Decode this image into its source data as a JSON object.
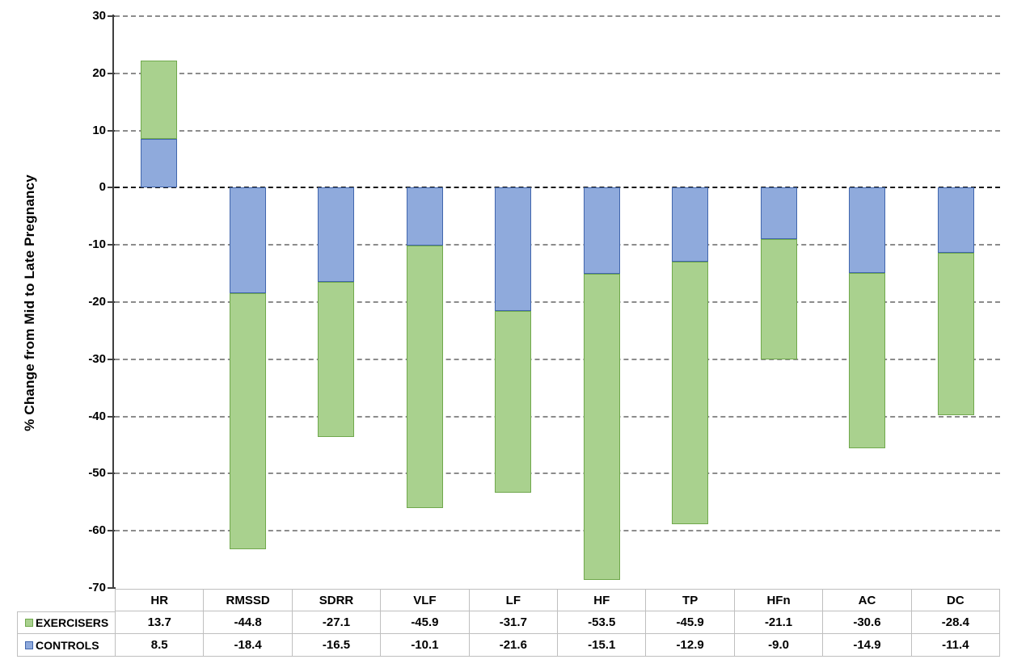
{
  "chart_data": {
    "type": "bar",
    "stacked": true,
    "title": "",
    "ylabel": "% Change from Mid to Late Pregnancy",
    "xlabel": "",
    "ylim": [
      -70,
      30
    ],
    "yticks": [
      30,
      20,
      10,
      0,
      -10,
      -20,
      -30,
      -40,
      -50,
      -60,
      -70
    ],
    "grid": "horizontal-dashed",
    "legend_position": "data-table-left",
    "categories": [
      "HR",
      "RMSSD",
      "SDRR",
      "VLF",
      "LF",
      "HF",
      "TP",
      "HFn",
      "AC",
      "DC"
    ],
    "series": [
      {
        "name": "EXERCISERS",
        "values": [
          13.7,
          -44.8,
          -27.1,
          -45.9,
          -31.7,
          -53.5,
          -45.9,
          -21.1,
          -30.6,
          -28.4
        ],
        "fill": "#a9d18e",
        "border": "#70a84c"
      },
      {
        "name": "CONTROLS",
        "values": [
          8.5,
          -18.4,
          -16.5,
          -10.1,
          -21.6,
          -15.1,
          -12.9,
          -9.0,
          -14.9,
          -11.4
        ],
        "fill": "#8faadc",
        "border": "#4166ad"
      }
    ],
    "stack_order": [
      "CONTROLS",
      "EXERCISERS"
    ],
    "value_format_decimals": 1
  },
  "colors": {
    "background": "#ffffff",
    "gridline": "#8c8c8c",
    "zero_line": "#1a1a1a",
    "axis": "#3f3f3f",
    "table_border": "#bfbfbf",
    "text": "#000000"
  }
}
